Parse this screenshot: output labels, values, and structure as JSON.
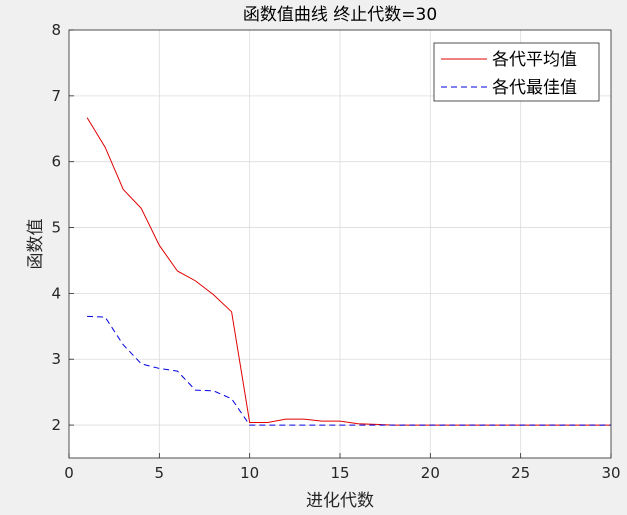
{
  "chart_data": {
    "type": "line",
    "title": "函数值曲线  终止代数=30",
    "xlabel": "进化代数",
    "ylabel": "函数值",
    "xlim": [
      0,
      30
    ],
    "ylim": [
      1.5,
      8
    ],
    "xticks": [
      0,
      5,
      10,
      15,
      20,
      25,
      30
    ],
    "yticks": [
      2,
      3,
      4,
      5,
      6,
      7,
      8
    ],
    "grid": true,
    "legend_position": "top-right",
    "x": [
      1,
      2,
      3,
      4,
      5,
      6,
      7,
      8,
      9,
      10,
      11,
      12,
      13,
      14,
      15,
      16,
      17,
      18,
      19,
      20,
      21,
      22,
      23,
      24,
      25,
      26,
      27,
      28,
      29,
      30
    ],
    "series": [
      {
        "name": "各代平均值",
        "color": "#e00000",
        "style": "solid",
        "values": [
          6.67,
          6.22,
          5.58,
          5.29,
          4.73,
          4.34,
          4.19,
          3.98,
          3.72,
          2.04,
          2.04,
          2.09,
          2.09,
          2.06,
          2.06,
          2.02,
          2.01,
          2.0,
          2.0,
          2.0,
          2.0,
          2.0,
          2.0,
          2.0,
          2.0,
          2.0,
          2.0,
          2.0,
          2.0,
          2.0
        ]
      },
      {
        "name": "各代最佳值",
        "color": "#0000e0",
        "style": "dashed",
        "values": [
          3.65,
          3.64,
          3.22,
          2.93,
          2.86,
          2.82,
          2.53,
          2.52,
          2.4,
          2.0,
          2.0,
          2.0,
          2.0,
          2.0,
          2.0,
          2.0,
          2.0,
          2.0,
          2.0,
          2.0,
          2.0,
          2.0,
          2.0,
          2.0,
          2.0,
          2.0,
          2.0,
          2.0,
          2.0,
          2.0
        ]
      }
    ]
  }
}
